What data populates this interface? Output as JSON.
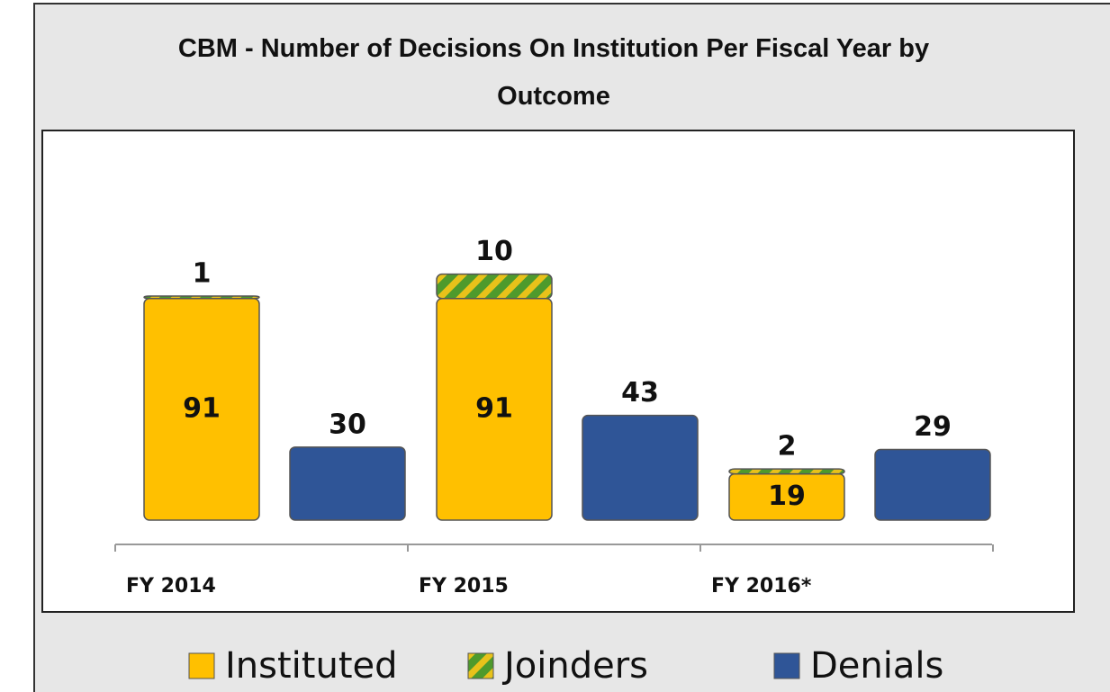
{
  "chart_data": {
    "type": "bar",
    "title": "CBM - Number of Decisions On Institution Per Fiscal Year by Outcome",
    "categories": [
      "FY 2014",
      "FY 2015",
      "FY 2016*"
    ],
    "series": [
      {
        "name": "Instituted",
        "color": "#ffc000",
        "stack": "a",
        "values": [
          91,
          91,
          19
        ]
      },
      {
        "name": "Joinders",
        "color": "#4e9a2c",
        "stack": "a",
        "values": [
          1,
          10,
          2
        ]
      },
      {
        "name": "Denials",
        "color": "#2f5597",
        "stack": "b",
        "values": [
          30,
          43,
          29
        ]
      }
    ],
    "ylim": [
      0,
      160
    ],
    "legend": "bottom"
  }
}
